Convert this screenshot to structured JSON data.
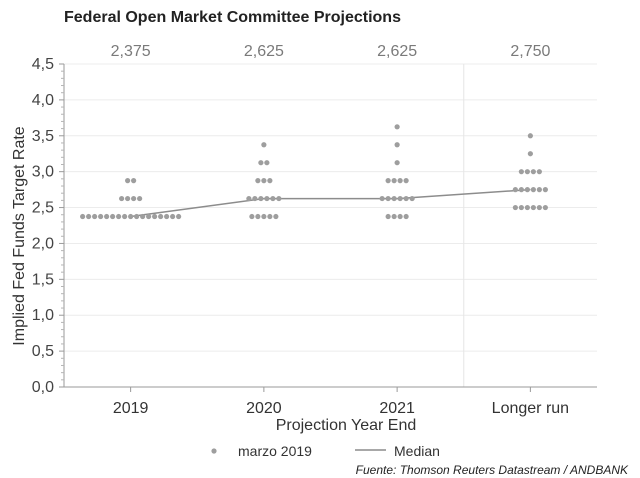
{
  "chart_data": {
    "type": "scatter",
    "title": "Federal Open Market Committee Projections",
    "xlabel": "Projection Year End",
    "ylabel": "Implied Fed Funds Target Rate",
    "categories": [
      "2019",
      "2020",
      "2021",
      "Longer run"
    ],
    "ylim": [
      0,
      4.5
    ],
    "yticks": [
      "0,0",
      "0,5",
      "1,0",
      "1,5",
      "2,0",
      "2,5",
      "3,0",
      "3,5",
      "4,0",
      "4,5"
    ],
    "median_labels": [
      "2,375",
      "2,625",
      "2,625",
      "2,750"
    ],
    "grid": true,
    "series": [
      {
        "name": "marzo 2019",
        "color": "#9e9e9e",
        "dots": [
          [
            {
              "value": 2.875,
              "count": 2
            },
            {
              "value": 2.625,
              "count": 4
            },
            {
              "value": 2.375,
              "count": 17
            }
          ],
          [
            {
              "value": 3.375,
              "count": 1
            },
            {
              "value": 3.125,
              "count": 2
            },
            {
              "value": 2.875,
              "count": 3
            },
            {
              "value": 2.625,
              "count": 6
            },
            {
              "value": 2.375,
              "count": 5
            }
          ],
          [
            {
              "value": 3.625,
              "count": 1
            },
            {
              "value": 3.375,
              "count": 1
            },
            {
              "value": 3.125,
              "count": 1
            },
            {
              "value": 2.875,
              "count": 4
            },
            {
              "value": 2.625,
              "count": 6
            },
            {
              "value": 2.375,
              "count": 4
            }
          ],
          [
            {
              "value": 3.5,
              "count": 1
            },
            {
              "value": 3.25,
              "count": 1
            },
            {
              "value": 3.0,
              "count": 4
            },
            {
              "value": 2.75,
              "count": 6
            },
            {
              "value": 2.5,
              "count": 6
            }
          ]
        ]
      },
      {
        "name": "Median",
        "color": "#8c8c8c",
        "values": [
          2.375,
          2.625,
          2.625,
          2.75
        ]
      }
    ],
    "legend_position": "bottom",
    "source": "Fuente: Thomson Reuters Datastream / ANDBANK"
  }
}
